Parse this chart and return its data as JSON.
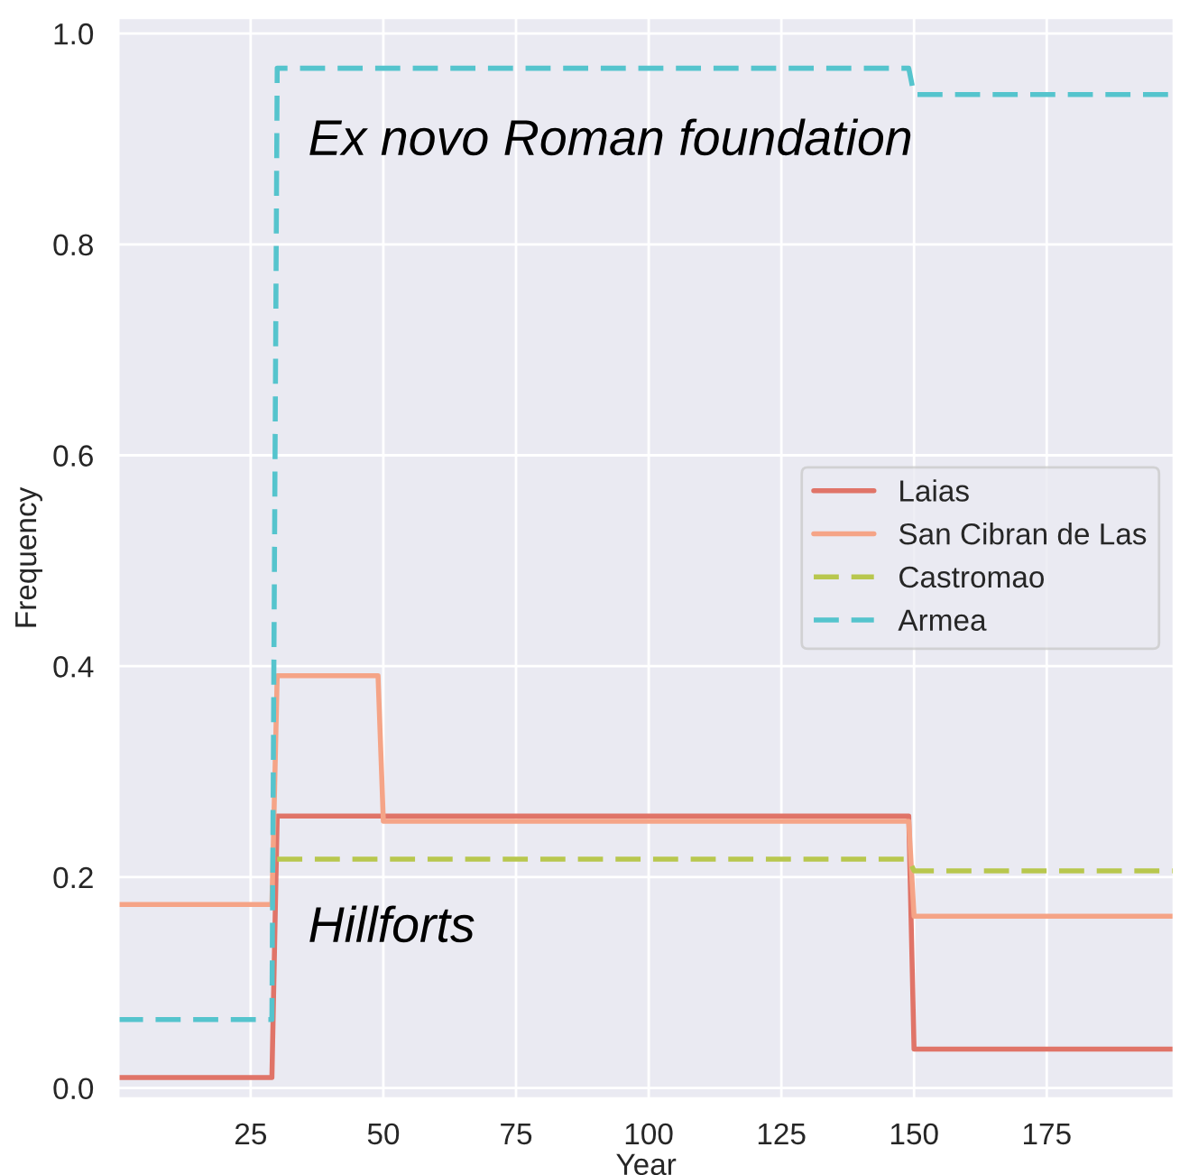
{
  "chart_data": {
    "type": "line",
    "xlabel": "Year",
    "ylabel": "Frequency",
    "xlim": [
      0,
      199
    ],
    "ylim": [
      -0.01,
      1.015
    ],
    "xticks": [
      25,
      50,
      75,
      100,
      125,
      150,
      175
    ],
    "yticks": [
      {
        "value": 0,
        "label": "0.0"
      },
      0.2,
      0.4,
      0.6,
      0.8,
      {
        "value": 1,
        "label": "1.0"
      }
    ],
    "grid": true,
    "legend": "center right",
    "marker": "none",
    "series": [
      {
        "name": "Laias",
        "color": "#e07468",
        "line_style": "solid",
        "x": [
          0,
          29,
          30,
          149,
          150,
          199
        ],
        "values": [
          0.01,
          0.01,
          0.258,
          0.258,
          0.037,
          0.037
        ]
      },
      {
        "name": "San Cibran de Las",
        "color": "#f5a487",
        "line_style": "solid",
        "x": [
          0,
          29,
          30,
          49,
          50,
          149,
          150,
          199
        ],
        "values": [
          0.174,
          0.174,
          0.391,
          0.391,
          0.253,
          0.253,
          0.163,
          0.163
        ]
      },
      {
        "name": "Castromao",
        "color": "#b8c74e",
        "line_style": "dashed",
        "x": [
          30,
          149,
          150,
          199
        ],
        "values": [
          0.217,
          0.217,
          0.206,
          0.206
        ]
      },
      {
        "name": "Armea",
        "color": "#55c4cd",
        "line_style": "dashed",
        "x": [
          0,
          29,
          30,
          149,
          150,
          199
        ],
        "values": [
          0.065,
          0.065,
          0.967,
          0.967,
          0.942,
          0.942
        ]
      }
    ],
    "annotations": [
      "Ex novo Roman foundation",
      "Hillforts"
    ]
  }
}
